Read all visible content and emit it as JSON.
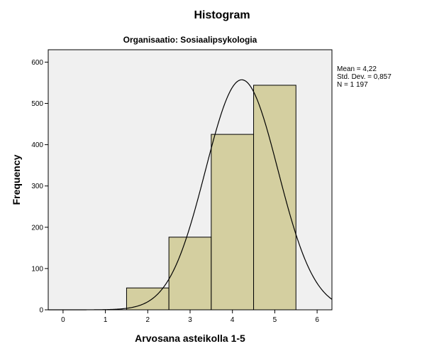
{
  "chart_data": {
    "type": "bar",
    "title": "Histogram",
    "subtitle": "Organisaatio: Sosiaalipsykologia",
    "xlabel": "Arvosana asteikolla 1-5",
    "ylabel": "Frequency",
    "x_ticks": [
      0,
      1,
      2,
      3,
      4,
      5,
      6
    ],
    "y_ticks": [
      0,
      100,
      200,
      300,
      400,
      500,
      600
    ],
    "xlim": [
      -0.35,
      6.35
    ],
    "ylim": [
      0,
      630
    ],
    "bins": [
      {
        "x0": 1.5,
        "x1": 2.5,
        "value": 53
      },
      {
        "x0": 2.5,
        "x1": 3.5,
        "value": 176
      },
      {
        "x0": 3.5,
        "x1": 4.5,
        "value": 425
      },
      {
        "x0": 4.5,
        "x1": 5.5,
        "value": 544
      }
    ],
    "normal_curve": {
      "mean": 4.22,
      "sd": 0.857,
      "n": 1197,
      "bin_width": 1
    },
    "stats": [
      "Mean = 4,22",
      "Std. Dev. = 0,857",
      "N = 1 197"
    ],
    "colors": {
      "bar_fill": "#d4cfa0",
      "bar_stroke": "#000000",
      "plot_bg": "#f0f0f0",
      "curve": "#000000"
    }
  }
}
